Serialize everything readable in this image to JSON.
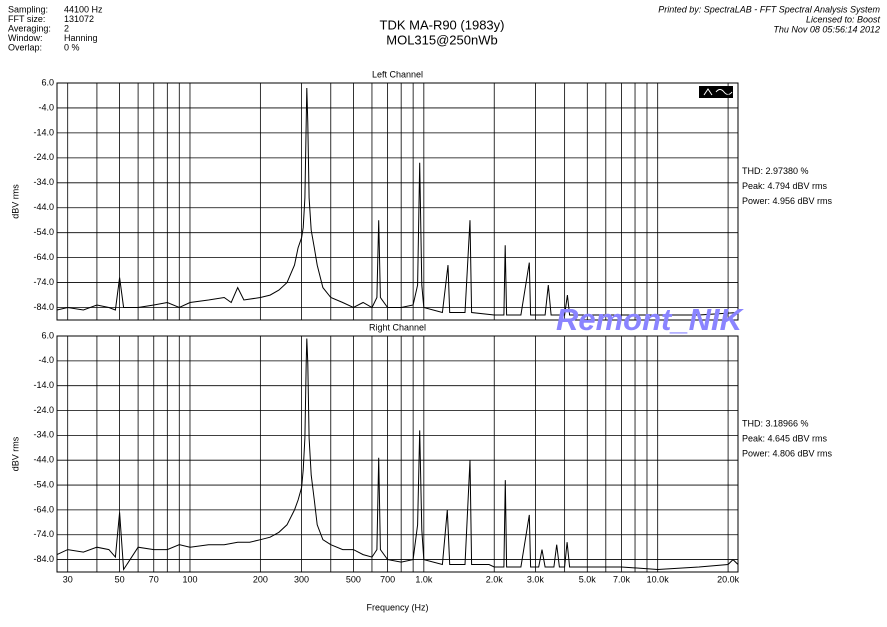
{
  "header": {
    "settings": [
      [
        "Sampling:",
        "44100 Hz"
      ],
      [
        "FFT size:",
        "131072"
      ],
      [
        "Averaging:",
        "2"
      ],
      [
        "Window:",
        "Hanning"
      ],
      [
        "Overlap:",
        "0 %"
      ]
    ],
    "title": "TDK MA-R90 (1983y)",
    "subtitle": "MOL315@250nWb",
    "printed_by": [
      "Printed by: SpectraLAB - FFT Spectral Analysis System",
      "Licensed to: Boost",
      "Thu Nov 08 05:56:14 2012"
    ],
    "watermark": "Remont_NIK"
  },
  "chart_data": [
    {
      "type": "line",
      "title": "Left Channel",
      "ylabel": "dBV rms",
      "color": "#000000",
      "grid": true,
      "ylim": [
        -89,
        6
      ],
      "yticks": [
        {
          "value": 6,
          "label": "6.0"
        },
        {
          "value": -4,
          "label": "-4.0"
        },
        {
          "value": -14,
          "label": "-14.0"
        },
        {
          "value": -24,
          "label": "-24.0"
        },
        {
          "value": -34,
          "label": "-34.0"
        },
        {
          "value": -44,
          "label": "-44.0"
        },
        {
          "value": -54,
          "label": "-54.0"
        },
        {
          "value": -64,
          "label": "-64.0"
        },
        {
          "value": -74,
          "label": "-74.0"
        },
        {
          "value": -84,
          "label": "-84.0"
        }
      ],
      "annotations": [
        "THD: 2.97380 %",
        "Peak: 4.794 dBV rms",
        "Power: 4.956 dBV rms"
      ],
      "x": [
        27,
        30,
        35,
        40,
        45,
        48,
        50,
        52,
        60,
        70,
        80,
        90,
        100,
        120,
        140,
        150,
        160,
        170,
        200,
        220,
        240,
        260,
        280,
        290,
        300,
        305,
        310,
        314,
        316,
        319,
        323,
        330,
        340,
        350,
        370,
        400,
        450,
        500,
        550,
        600,
        630,
        641,
        652,
        700,
        800,
        900,
        940,
        960,
        980,
        1000,
        1200,
        1268,
        1290,
        1500,
        1575,
        1600,
        2000,
        2200,
        2227,
        2260,
        2600,
        2824,
        2860,
        3300,
        3407,
        3500,
        4000,
        4110,
        4200,
        5000,
        7000,
        10000,
        15000,
        22050
      ],
      "values": [
        -85,
        -84,
        -85,
        -83,
        -84,
        -85,
        -72,
        -84,
        -84,
        -83,
        -82,
        -84,
        -82,
        -81,
        -80,
        -82,
        -76,
        -81,
        -80,
        -79,
        -77,
        -74,
        -67,
        -60,
        -56,
        -52,
        -40,
        -10,
        4,
        -10,
        -40,
        -53,
        -60,
        -67,
        -76,
        -80,
        -82,
        -84,
        -82,
        -84,
        -80,
        -49,
        -80,
        -84,
        -84,
        -83,
        -75,
        -26,
        -75,
        -84,
        -86,
        -67,
        -86,
        -86,
        -49,
        -86,
        -87,
        -87,
        -59,
        -87,
        -87,
        -66,
        -87,
        -87,
        -75,
        -87,
        -87,
        -79,
        -87,
        -87,
        -87,
        -87,
        -87,
        -86
      ]
    },
    {
      "type": "line",
      "title": "Right Channel",
      "ylabel": "dBV rms",
      "xlabel": "Frequency (Hz)",
      "color": "#000000",
      "grid": true,
      "xscale": "log",
      "xlim": [
        27,
        22050
      ],
      "xticks": [
        30,
        50,
        70,
        100,
        200,
        300,
        500,
        700,
        {
          "value": 1000,
          "label": "1.0k"
        },
        {
          "value": 2000,
          "label": "2.0k"
        },
        {
          "value": 3000,
          "label": "3.0k"
        },
        {
          "value": 5000,
          "label": "5.0k"
        },
        {
          "value": 7000,
          "label": "7.0k"
        },
        {
          "value": 10000,
          "label": "10.0k"
        },
        {
          "value": 20000,
          "label": "20.0k"
        }
      ],
      "minor_xticks": [
        40,
        60,
        80,
        90,
        400,
        600,
        800,
        900,
        4000,
        6000,
        8000,
        9000
      ],
      "ylim": [
        -89,
        6
      ],
      "yticks": [
        {
          "value": 6,
          "label": "6.0"
        },
        {
          "value": -4,
          "label": "-4.0"
        },
        {
          "value": -14,
          "label": "-14.0"
        },
        {
          "value": -24,
          "label": "-24.0"
        },
        {
          "value": -34,
          "label": "-34.0"
        },
        {
          "value": -44,
          "label": "-44.0"
        },
        {
          "value": -54,
          "label": "-54.0"
        },
        {
          "value": -64,
          "label": "-64.0"
        },
        {
          "value": -74,
          "label": "-74.0"
        },
        {
          "value": -84,
          "label": "-84.0"
        }
      ],
      "annotations": [
        "THD: 3.18966 %",
        "Peak: 4.645 dBV rms",
        "Power: 4.806 dBV rms"
      ],
      "x": [
        27,
        30,
        35,
        40,
        45,
        48,
        50,
        52,
        60,
        70,
        80,
        90,
        100,
        120,
        140,
        160,
        180,
        200,
        220,
        240,
        260,
        280,
        290,
        300,
        305,
        310,
        314,
        316,
        319,
        323,
        330,
        340,
        350,
        370,
        400,
        450,
        500,
        550,
        600,
        630,
        641,
        652,
        700,
        800,
        900,
        940,
        960,
        980,
        1000,
        1200,
        1260,
        1290,
        1500,
        1575,
        1600,
        1900,
        2000,
        2200,
        2230,
        2260,
        2600,
        2824,
        2860,
        3100,
        3200,
        3300,
        3600,
        3700,
        3800,
        4000,
        4100,
        4200,
        5000,
        7000,
        10000,
        15000,
        20000,
        21000,
        22050
      ],
      "values": [
        -82,
        -80,
        -81,
        -79,
        -80,
        -83,
        -65,
        -88,
        -79,
        -80,
        -80,
        -78,
        -79,
        -78,
        -78,
        -77,
        -77,
        -76,
        -75,
        -73,
        -70,
        -64,
        -60,
        -55,
        -48,
        -35,
        -5,
        5,
        -5,
        -35,
        -50,
        -60,
        -70,
        -76,
        -78,
        -80,
        -80,
        -82,
        -83,
        -80,
        -43,
        -80,
        -84,
        -85,
        -84,
        -70,
        -32,
        -72,
        -84,
        -86,
        -64,
        -86,
        -86,
        -44,
        -86,
        -86,
        -87,
        -87,
        -52,
        -87,
        -87,
        -66,
        -87,
        -87,
        -80,
        -87,
        -87,
        -78,
        -87,
        -87,
        -77,
        -87,
        -87,
        -87,
        -88,
        -87,
        -86,
        -84,
        -86
      ]
    }
  ]
}
